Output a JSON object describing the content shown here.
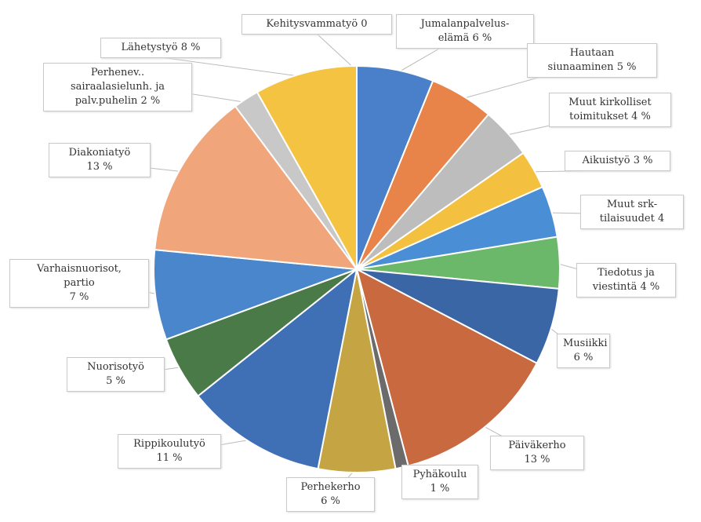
{
  "chart_data": {
    "type": "pie",
    "categories": [
      "Jumalanpalvelus-\nelämä",
      "Hautaan\nsiunaaminen",
      "Muut kirkolliset\ntoimitukset",
      "Aikuistyö",
      "Muut srk-\ntilaisuudet",
      "Tiedotus ja\nviestintä",
      "Musiikki",
      "Päiväkerho",
      "Pyhäkoulu",
      "Perhekerho",
      "Rippikoulutyö",
      "Nuorisotyö",
      "Varhaisnuorisot,\npartio",
      "Diakoniatyö",
      "Perhenev..\nsairaalasielunh. ja\npalv.puhelin",
      "Lähetystyö",
      "Kehitysvammatyö"
    ],
    "values": [
      6,
      5,
      4,
      3,
      4,
      4,
      6,
      13,
      1,
      6,
      11,
      5,
      7,
      13,
      2,
      8,
      0
    ],
    "value_labels": [
      "6 %",
      "5 %",
      "4 %",
      "3 %",
      "4",
      "4 %",
      "6 %",
      "13 %",
      "1 %",
      "6 %",
      "11 %",
      "5 %",
      "7 %",
      "13 %",
      "2 %",
      "8 %",
      "0"
    ],
    "colors": [
      "#4a7fc9",
      "#e8834a",
      "#bdbdbd",
      "#f3c040",
      "#4a8fd6",
      "#6cb86a",
      "#3a66a5",
      "#c8693f",
      "#6b6b6b",
      "#c4a443",
      "#3f6fb5",
      "#4a7a48",
      "#4a86cc",
      "#f0a67a",
      "#c8c8c8",
      "#f5c342",
      "#cccccc"
    ]
  }
}
